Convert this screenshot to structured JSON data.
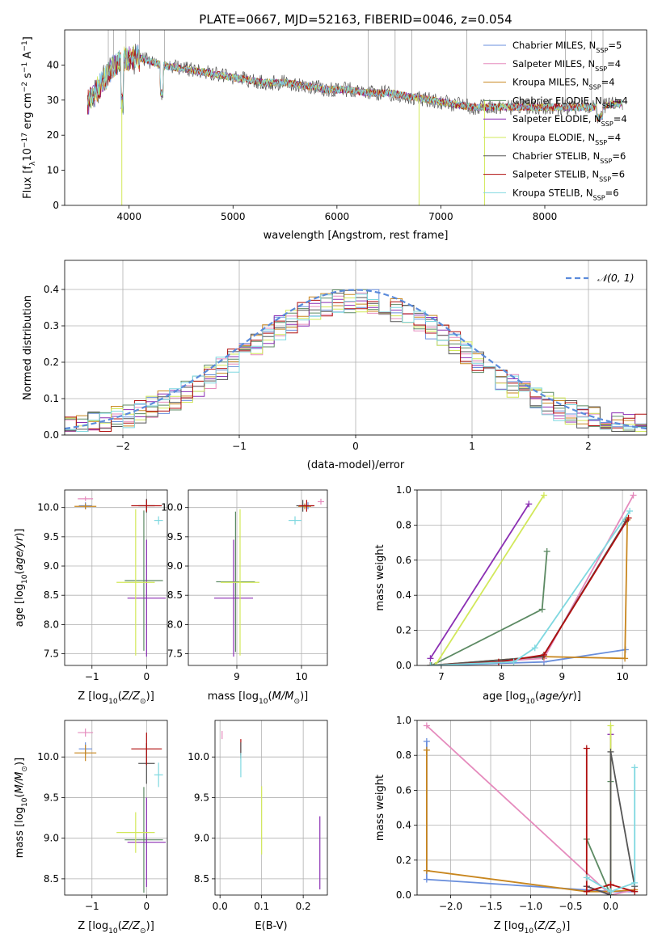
{
  "figure_title": "PLATE=0667, MJD=52163, FIBERID=0046, z=0.054",
  "models": [
    {
      "label": "Chabrier MILES, N",
      "nssp": "=5",
      "color": "#6a8fdc"
    },
    {
      "label": "Salpeter MILES, N",
      "nssp": "=4",
      "color": "#e58bbd"
    },
    {
      "label": "Kroupa MILES, N",
      "nssp": "=4",
      "color": "#c8861e"
    },
    {
      "label": "Chabrier ELODIE, N",
      "nssp": "=4",
      "color": "#5c8a63"
    },
    {
      "label": "Salpeter ELODIE, N",
      "nssp": "=4",
      "color": "#8b2fb3"
    },
    {
      "label": "Kroupa ELODIE, N",
      "nssp": "=4",
      "color": "#d2e85a"
    },
    {
      "label": "Chabrier STELIB, N",
      "nssp": "=6",
      "color": "#555555"
    },
    {
      "label": "Salpeter STELIB, N",
      "nssp": "=6",
      "color": "#b00f0f"
    },
    {
      "label": "Kroupa STELIB, N",
      "nssp": "=6",
      "color": "#7fd8e0"
    }
  ],
  "nssp_sub": "SSP",
  "chart_data": [
    {
      "id": "spectrum",
      "type": "line",
      "xlabel": "wavelength [Angstrom, rest frame]",
      "ylabel_parts": {
        "a": "Flux [f",
        "b": "λ",
        "c": "10",
        "d": "−17",
        "e": " erg cm",
        "f": "−2",
        "g": " s",
        "h": "−1",
        "i": " A",
        "j": "−1",
        "k": "]"
      },
      "xlim": [
        3380,
        8980
      ],
      "ylim": [
        0,
        50
      ],
      "xticks": [
        4000,
        5000,
        6000,
        7000,
        8000
      ],
      "yticks": [
        0,
        10,
        20,
        30,
        40
      ],
      "continuum": [
        [
          3600,
          29
        ],
        [
          3700,
          33
        ],
        [
          3800,
          38
        ],
        [
          3900,
          41
        ],
        [
          4000,
          42
        ],
        [
          4100,
          42
        ],
        [
          4300,
          40
        ],
        [
          4500,
          39
        ],
        [
          4700,
          38
        ],
        [
          4900,
          37
        ],
        [
          5100,
          36
        ],
        [
          5300,
          35
        ],
        [
          5500,
          35
        ],
        [
          5700,
          34
        ],
        [
          5900,
          33
        ],
        [
          6100,
          33
        ],
        [
          6300,
          32
        ],
        [
          6500,
          32
        ],
        [
          6700,
          31
        ],
        [
          6900,
          30
        ],
        [
          7100,
          29
        ],
        [
          7300,
          28
        ],
        [
          7500,
          28
        ],
        [
          7700,
          28
        ],
        [
          7900,
          28
        ],
        [
          8100,
          28
        ],
        [
          8300,
          28
        ],
        [
          8500,
          28
        ],
        [
          8700,
          29
        ]
      ],
      "legend": "upper right"
    },
    {
      "id": "residuals",
      "type": "histogram",
      "xlabel": "(data-model)/error",
      "ylabel": "Normed distribution",
      "xlim": [
        -2.5,
        2.5
      ],
      "ylim": [
        0,
        0.48
      ],
      "xticks": [
        -2,
        -1,
        0,
        1,
        2
      ],
      "yticks": [
        0.0,
        0.1,
        0.2,
        0.3,
        0.4
      ],
      "bin_width": 0.1,
      "gaussian_label": "𝒩(0, 1)",
      "gaussian_color": "#5b8bdb",
      "grid": true
    },
    {
      "id": "age_vs_Z",
      "type": "errorbar",
      "xlabel": "Z [log",
      "xsub": "10",
      "xlabel2": "(Z/Z",
      "xsun": "⊙",
      "xlabel3": ")]",
      "ylabel": "age  [log",
      "ysub": "10",
      "ylabel2": "(age/yr)]",
      "xlim": [
        -1.5,
        0.38
      ],
      "ylim": [
        7.3,
        10.3
      ],
      "xticks": [
        -1,
        0
      ],
      "yticks": [
        7.5,
        8.0,
        8.5,
        9.0,
        9.5,
        10.0
      ],
      "points": [
        {
          "m": 0,
          "x": -1.12,
          "xe": 0.12,
          "y": 10.03,
          "ye": 0.06
        },
        {
          "m": 1,
          "x": -1.12,
          "xe": 0.14,
          "y": 10.15,
          "ye": 0.04
        },
        {
          "m": 2,
          "x": -1.12,
          "xe": 0.2,
          "y": 10.02,
          "ye": 0.05
        },
        {
          "m": 3,
          "x": -0.05,
          "xe": 0.35,
          "y": 8.75,
          "ye": 1.2
        },
        {
          "m": 4,
          "x": 0.0,
          "xe": 0.35,
          "y": 8.45,
          "ye": 1.0
        },
        {
          "m": 5,
          "x": -0.2,
          "xe": 0.35,
          "y": 8.72,
          "ye": 1.25
        },
        {
          "m": 6,
          "x": 0.0,
          "xe": 0.15,
          "y": 10.03,
          "ye": 0.12
        },
        {
          "m": 7,
          "x": 0.0,
          "xe": 0.28,
          "y": 10.03,
          "ye": 0.1
        },
        {
          "m": 8,
          "x": 0.22,
          "xe": 0.08,
          "y": 9.78,
          "ye": 0.07
        }
      ]
    },
    {
      "id": "age_vs_mass",
      "type": "errorbar",
      "xlabel": "mass [log",
      "xsub": "10",
      "xlabel2": "(M/M",
      "xsun": "⊙",
      "xlabel3": ")]",
      "xlim": [
        8.25,
        10.4
      ],
      "ylim": [
        7.3,
        10.3
      ],
      "xticks": [
        9,
        10
      ],
      "yticks": [
        7.5,
        8.0,
        8.5,
        9.0,
        9.5,
        10.0
      ],
      "points": [
        {
          "m": 0,
          "x": 10.1,
          "xe": 0.08,
          "y": 10.03,
          "ye": 0.06
        },
        {
          "m": 1,
          "x": 10.3,
          "xe": 0.05,
          "y": 10.1,
          "ye": 0.05
        },
        {
          "m": 2,
          "x": 10.05,
          "xe": 0.1,
          "y": 10.02,
          "ye": 0.05
        },
        {
          "m": 3,
          "x": 8.98,
          "xe": 0.3,
          "y": 8.73,
          "ye": 1.2
        },
        {
          "m": 4,
          "x": 8.95,
          "xe": 0.3,
          "y": 8.45,
          "ye": 1.0
        },
        {
          "m": 5,
          "x": 9.05,
          "xe": 0.3,
          "y": 8.72,
          "ye": 1.25
        },
        {
          "m": 6,
          "x": 10.02,
          "xe": 0.1,
          "y": 10.03,
          "ye": 0.1
        },
        {
          "m": 7,
          "x": 10.08,
          "xe": 0.12,
          "y": 10.03,
          "ye": 0.1
        },
        {
          "m": 8,
          "x": 9.9,
          "xe": 0.1,
          "y": 9.78,
          "ye": 0.07
        }
      ]
    },
    {
      "id": "massweight_vs_age",
      "type": "line",
      "xlabel": "age  [log",
      "xsub": "10",
      "xlabel2": "(age/yr)]",
      "ylabel": "mass weight",
      "xlim": [
        6.6,
        10.4
      ],
      "ylim": [
        0,
        1
      ],
      "xticks": [
        7,
        8,
        9,
        10
      ],
      "yticks": [
        0.0,
        0.2,
        0.4,
        0.6,
        0.8,
        1.0
      ],
      "series": [
        {
          "m": 0,
          "pts": [
            [
              6.82,
              0.0
            ],
            [
              8.7,
              0.02
            ],
            [
              10.05,
              0.09
            ]
          ]
        },
        {
          "m": 1,
          "pts": [
            [
              6.82,
              0.0
            ],
            [
              8.7,
              0.04
            ],
            [
              10.18,
              0.97
            ]
          ]
        },
        {
          "m": 2,
          "pts": [
            [
              6.82,
              0.0
            ],
            [
              8.7,
              0.05
            ],
            [
              10.04,
              0.04
            ],
            [
              10.08,
              0.83
            ]
          ]
        },
        {
          "m": 3,
          "pts": [
            [
              6.84,
              0.0
            ],
            [
              8.67,
              0.32
            ],
            [
              8.75,
              0.65
            ]
          ]
        },
        {
          "m": 4,
          "pts": [
            [
              6.82,
              0.04
            ],
            [
              8.45,
              0.92
            ]
          ]
        },
        {
          "m": 5,
          "pts": [
            [
              6.9,
              0.0
            ],
            [
              8.7,
              0.97
            ]
          ]
        },
        {
          "m": 6,
          "pts": [
            [
              6.82,
              0.0
            ],
            [
              8.68,
              0.05
            ],
            [
              10.05,
              0.82
            ]
          ]
        },
        {
          "m": 7,
          "pts": [
            [
              6.82,
              0.0
            ],
            [
              7.95,
              0.02
            ],
            [
              8.7,
              0.06
            ],
            [
              10.1,
              0.84
            ]
          ]
        },
        {
          "m": 8,
          "pts": [
            [
              6.82,
              0.0
            ],
            [
              8.2,
              0.02
            ],
            [
              8.55,
              0.1
            ],
            [
              10.12,
              0.88
            ]
          ]
        }
      ]
    },
    {
      "id": "mass_vs_Z",
      "type": "errorbar",
      "xlabel": "Z [log",
      "xsub": "10",
      "xlabel2": "(Z/Z",
      "xsun": "⊙",
      "xlabel3": ")]",
      "ylabel": "mass [log",
      "ysub": "10",
      "ylabel2": "(M/M",
      "ysun": "⊙",
      "ylabel3": ")]",
      "xlim": [
        -1.5,
        0.38
      ],
      "ylim": [
        8.3,
        10.45
      ],
      "xticks": [
        -1,
        0
      ],
      "yticks": [
        8.5,
        9.0,
        9.5,
        10.0
      ],
      "points": [
        {
          "m": 0,
          "x": -1.12,
          "xe": 0.12,
          "y": 10.1,
          "ye": 0.08
        },
        {
          "m": 1,
          "x": -1.12,
          "xe": 0.14,
          "y": 10.3,
          "ye": 0.05
        },
        {
          "m": 2,
          "x": -1.12,
          "xe": 0.2,
          "y": 10.05,
          "ye": 0.1
        },
        {
          "m": 3,
          "x": -0.05,
          "xe": 0.35,
          "y": 8.98,
          "ye": 0.65
        },
        {
          "m": 4,
          "x": 0.0,
          "xe": 0.35,
          "y": 8.95,
          "ye": 0.55
        },
        {
          "m": 5,
          "x": -0.2,
          "xe": 0.35,
          "y": 9.07,
          "ye": 0.25
        },
        {
          "m": 6,
          "x": 0.0,
          "xe": 0.15,
          "y": 9.92,
          "ye": 0.25
        },
        {
          "m": 7,
          "x": 0.0,
          "xe": 0.28,
          "y": 10.1,
          "ye": 0.2
        },
        {
          "m": 8,
          "x": 0.22,
          "xe": 0.08,
          "y": 9.78,
          "ye": 0.15
        }
      ]
    },
    {
      "id": "mass_vs_ebv",
      "type": "errorbar",
      "xlabel": "E(B-V)",
      "xlim": [
        -0.012,
        0.258
      ],
      "ylim": [
        8.3,
        10.45
      ],
      "xticks": [
        0.0,
        0.1,
        0.2
      ],
      "yticks": [
        8.5,
        9.0,
        9.5,
        10.0
      ],
      "points": [
        {
          "m": 1,
          "x": 0.005,
          "y": 10.27,
          "ye": 0.05
        },
        {
          "m": 7,
          "x": 0.05,
          "y": 10.12,
          "ye": 0.1
        },
        {
          "m": 6,
          "x": 0.05,
          "y": 10.08,
          "ye": 0.1
        },
        {
          "m": 8,
          "x": 0.05,
          "y": 9.9,
          "ye": 0.15
        },
        {
          "m": 5,
          "x": 0.1,
          "y": 9.22,
          "ye": 0.42
        },
        {
          "m": 4,
          "x": 0.24,
          "y": 8.82,
          "ye": 0.45
        }
      ]
    },
    {
      "id": "massweight_vs_Z",
      "type": "line",
      "xlabel": "Z [log",
      "xsub": "10",
      "xlabel2": "(Z/Z",
      "xsun": "⊙",
      "xlabel3": ")]",
      "ylabel": "mass weight",
      "xlim": [
        -2.42,
        0.45
      ],
      "ylim": [
        0,
        1
      ],
      "xticks": [
        -2.0,
        -1.5,
        -1.0,
        -0.5,
        0.0
      ],
      "yticks": [
        0.0,
        0.2,
        0.4,
        0.6,
        0.8,
        1.0
      ],
      "series": [
        {
          "m": 0,
          "pts": [
            [
              -2.3,
              0.88
            ],
            [
              -2.3,
              0.09
            ],
            [
              0.0,
              0.02
            ],
            [
              0.3,
              0.02
            ]
          ]
        },
        {
          "m": 1,
          "pts": [
            [
              -2.3,
              0.97
            ],
            [
              0.0,
              0.0
            ],
            [
              0.3,
              0.03
            ]
          ]
        },
        {
          "m": 2,
          "pts": [
            [
              -2.3,
              0.83
            ],
            [
              -2.3,
              0.14
            ],
            [
              -0.3,
              0.02
            ],
            [
              0.0,
              0.02
            ],
            [
              0.3,
              0.03
            ]
          ]
        },
        {
          "m": 3,
          "pts": [
            [
              -0.3,
              0.32
            ],
            [
              0.0,
              0.0
            ],
            [
              0.0,
              0.65
            ]
          ]
        },
        {
          "m": 4,
          "pts": [
            [
              -0.3,
              0.05
            ],
            [
              0.0,
              0.0
            ],
            [
              0.0,
              0.92
            ]
          ]
        },
        {
          "m": 5,
          "pts": [
            [
              0.0,
              0.0
            ],
            [
              0.0,
              0.97
            ]
          ]
        },
        {
          "m": 6,
          "pts": [
            [
              -0.3,
              0.05
            ],
            [
              0.0,
              0.0
            ],
            [
              0.0,
              0.82
            ],
            [
              0.3,
              0.05
            ]
          ]
        },
        {
          "m": 7,
          "pts": [
            [
              -0.3,
              0.84
            ],
            [
              -0.3,
              0.02
            ],
            [
              0.0,
              0.06
            ],
            [
              0.3,
              0.02
            ]
          ]
        },
        {
          "m": 8,
          "pts": [
            [
              -0.3,
              0.1
            ],
            [
              0.0,
              0.02
            ],
            [
              0.3,
              0.07
            ],
            [
              0.3,
              0.73
            ]
          ]
        }
      ]
    }
  ]
}
